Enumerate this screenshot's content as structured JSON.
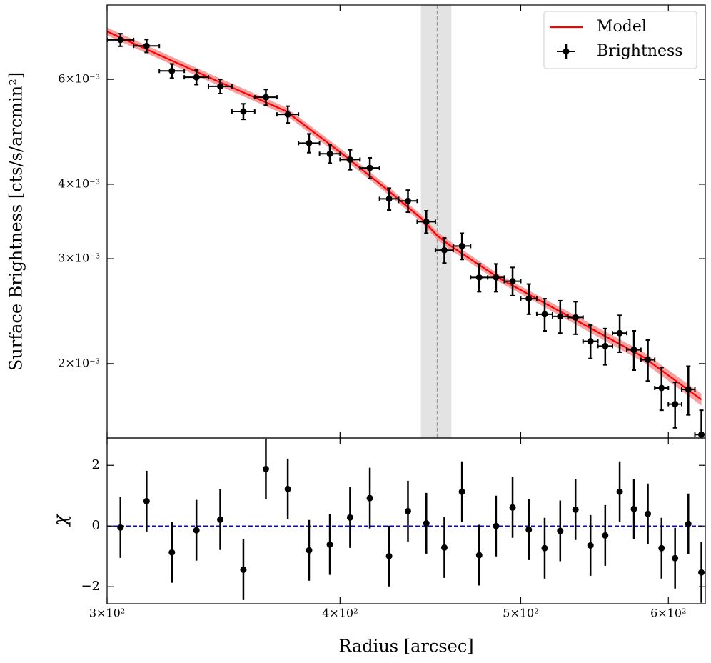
{
  "chart_data": [
    {
      "type": "scatter",
      "ylabel": "Surface Brightness [cts/s/arcmin²]",
      "xlog": true,
      "ylog": true,
      "xlim": [
        300,
        628
      ],
      "ylim": [
        0.0015,
        0.008
      ],
      "yticks": [
        {
          "value": 0.002,
          "label": "2×10⁻³"
        },
        {
          "value": 0.003,
          "label": "3×10⁻³"
        },
        {
          "value": 0.004,
          "label": "4×10⁻³"
        },
        {
          "value": 0.006,
          "label": "6×10⁻³"
        }
      ],
      "legend": "upper right",
      "vline": 451,
      "vband": [
        442,
        459
      ],
      "series": [
        {
          "name": "Model",
          "kind": "line",
          "color": "#ff0000",
          "band_color": "#f88080",
          "x": [
            300,
            343,
            374,
            400,
            423,
            442,
            451,
            458,
            487,
            532,
            582,
            625
          ],
          "values": [
            0.00722,
            0.00598,
            0.00531,
            0.00453,
            0.00394,
            0.00351,
            0.00328,
            0.00316,
            0.00278,
            0.00239,
            0.00205,
            0.00174
          ],
          "lower": [
            0.00711,
            0.00589,
            0.00523,
            0.00446,
            0.00388,
            0.00346,
            0.00323,
            0.00311,
            0.00274,
            0.00235,
            0.00201,
            0.0017
          ],
          "upper": [
            0.00733,
            0.00607,
            0.00539,
            0.0046,
            0.004,
            0.00356,
            0.00333,
            0.00321,
            0.00282,
            0.00243,
            0.00209,
            0.00178
          ]
        },
        {
          "name": "Brightness",
          "kind": "errorbar",
          "color": "#000000",
          "x": [
            305,
            315,
            325,
            335,
            345,
            355,
            365,
            375,
            385,
            395,
            405,
            415,
            425,
            435,
            445,
            455,
            465,
            475,
            485,
            495,
            505,
            515,
            525,
            535,
            545,
            555,
            565,
            575,
            585,
            595,
            605,
            615,
            625
          ],
          "values": [
            0.00699,
            0.00683,
            0.0062,
            0.00605,
            0.00584,
            0.0053,
            0.0056,
            0.00524,
            0.00469,
            0.0045,
            0.0044,
            0.00426,
            0.00378,
            0.00375,
            0.00346,
            0.0031,
            0.00315,
            0.00279,
            0.00279,
            0.00275,
            0.00257,
            0.00242,
            0.0024,
            0.00239,
            0.00218,
            0.00214,
            0.00225,
            0.00211,
            0.00203,
            0.00182,
            0.00171,
            0.00181,
            0.00152
          ],
          "yerr": [
            0.00017,
            0.00017,
            0.00017,
            0.00017,
            0.00016,
            0.00016,
            0.00017,
            0.00017,
            0.00017,
            0.00016,
            0.00017,
            0.00017,
            0.00016,
            0.00016,
            0.00015,
            0.00015,
            0.00016,
            0.00015,
            0.00015,
            0.00015,
            0.00015,
            0.00015,
            0.00015,
            0.00015,
            0.00014,
            0.00015,
            0.00016,
            0.00016,
            0.00016,
            0.00015,
            0.00015,
            0.00017,
            0.00015
          ],
          "xerr": [
            5,
            5,
            5,
            5,
            5,
            5,
            5,
            5,
            5,
            5,
            5,
            5,
            5,
            5,
            5,
            5,
            5,
            5,
            5,
            5,
            5,
            5,
            5,
            5,
            5,
            5,
            5,
            5,
            5,
            5,
            5,
            5,
            5
          ]
        }
      ]
    },
    {
      "type": "scatter",
      "xlabel": "Radius [arcsec]",
      "ylabel": "χ",
      "xlog": true,
      "xlim": [
        300,
        628
      ],
      "ylim": [
        -2.56,
        2.9
      ],
      "xticks": [
        {
          "value": 300,
          "label": "3×10²"
        },
        {
          "value": 400,
          "label": "4×10²"
        },
        {
          "value": 500,
          "label": "5×10²"
        },
        {
          "value": 600,
          "label": "6×10²"
        }
      ],
      "yticks": [
        {
          "value": -2,
          "label": "−2"
        },
        0,
        2
      ],
      "hline": 0,
      "hline_color": "#0000ff",
      "color": "#000000",
      "x": [
        305,
        315,
        325,
        335,
        345,
        355,
        365,
        375,
        385,
        395,
        405,
        415,
        425,
        435,
        445,
        455,
        465,
        475,
        485,
        495,
        505,
        515,
        525,
        535,
        545,
        555,
        565,
        575,
        585,
        595,
        605,
        615,
        625
      ],
      "values": [
        -0.05,
        0.82,
        -0.87,
        -0.14,
        0.21,
        -1.44,
        1.88,
        1.22,
        -0.8,
        -0.61,
        0.28,
        0.92,
        -0.99,
        0.49,
        0.09,
        -0.71,
        1.13,
        -0.96,
        0.0,
        0.61,
        -0.12,
        -0.73,
        -0.16,
        0.54,
        -0.64,
        -0.31,
        1.13,
        0.56,
        0.4,
        -0.73,
        -1.06,
        0.07,
        -1.53
      ],
      "yerr": [
        1,
        1,
        1,
        1,
        1,
        1,
        1,
        1,
        1,
        1,
        1,
        1,
        1,
        1,
        1,
        1,
        1,
        1,
        1,
        1,
        1,
        1,
        1,
        1,
        1,
        1,
        1,
        1,
        1,
        1,
        1,
        1,
        1
      ]
    }
  ]
}
